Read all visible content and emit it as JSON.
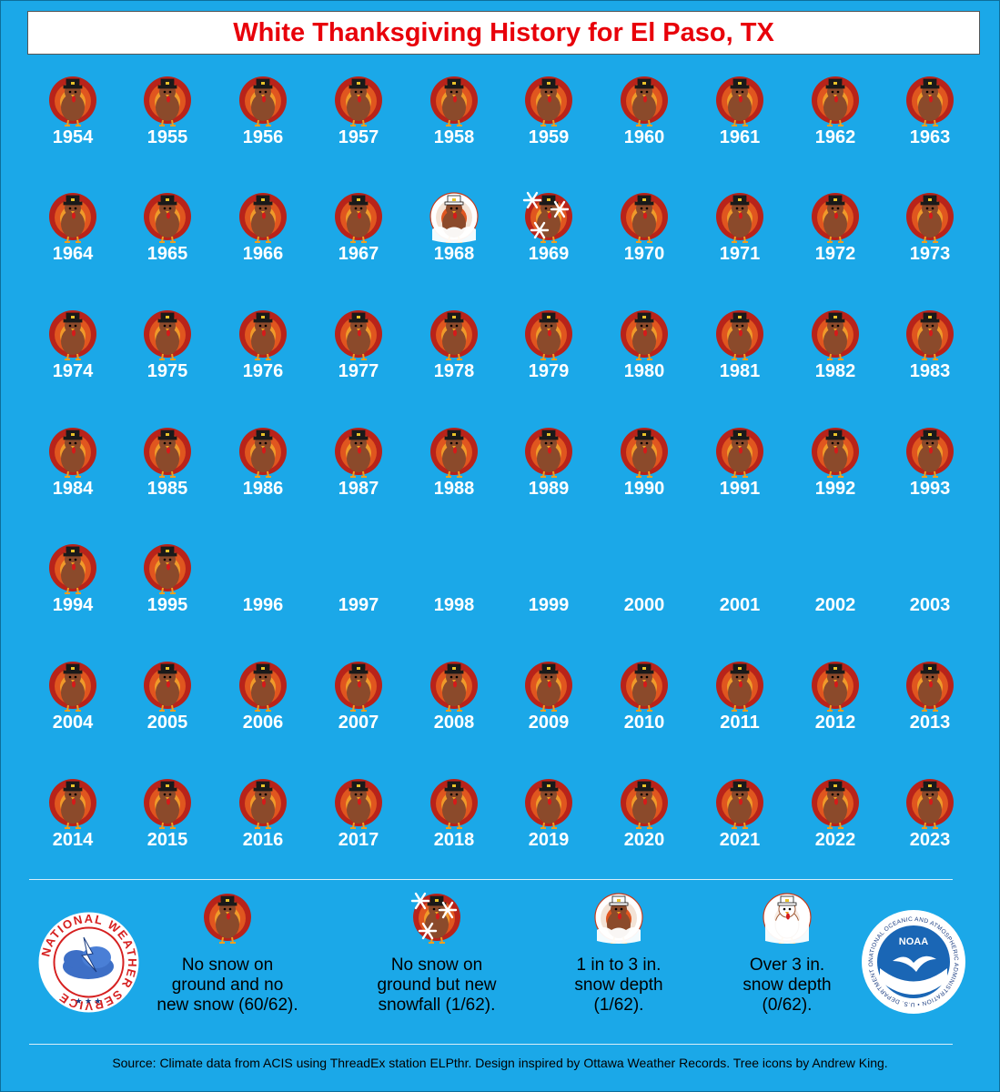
{
  "title": "White Thanksgiving History for El Paso, TX",
  "colors": {
    "background": "#1ba8e8",
    "title_text": "#e8000a",
    "turkey_body": "#8b4a2b",
    "turkey_feather_outer": "#b8231a",
    "turkey_feather_mid": "#e0561f",
    "turkey_feather_inner": "#f09a2a",
    "snow": "#ffffff"
  },
  "years": [
    {
      "year": "1954",
      "icon": "turkey-no-snow-icon"
    },
    {
      "year": "1955",
      "icon": "turkey-no-snow-icon"
    },
    {
      "year": "1956",
      "icon": "turkey-no-snow-icon"
    },
    {
      "year": "1957",
      "icon": "turkey-no-snow-icon"
    },
    {
      "year": "1958",
      "icon": "turkey-no-snow-icon"
    },
    {
      "year": "1959",
      "icon": "turkey-no-snow-icon"
    },
    {
      "year": "1960",
      "icon": "turkey-no-snow-icon"
    },
    {
      "year": "1961",
      "icon": "turkey-no-snow-icon"
    },
    {
      "year": "1962",
      "icon": "turkey-no-snow-icon"
    },
    {
      "year": "1963",
      "icon": "turkey-no-snow-icon"
    },
    {
      "year": "1964",
      "icon": "turkey-no-snow-icon"
    },
    {
      "year": "1965",
      "icon": "turkey-no-snow-icon"
    },
    {
      "year": "1966",
      "icon": "turkey-no-snow-icon"
    },
    {
      "year": "1967",
      "icon": "turkey-no-snow-icon"
    },
    {
      "year": "1968",
      "icon": "turkey-snow-depth-icon"
    },
    {
      "year": "1969",
      "icon": "turkey-snowfall-icon"
    },
    {
      "year": "1970",
      "icon": "turkey-no-snow-icon"
    },
    {
      "year": "1971",
      "icon": "turkey-no-snow-icon"
    },
    {
      "year": "1972",
      "icon": "turkey-no-snow-icon"
    },
    {
      "year": "1973",
      "icon": "turkey-no-snow-icon"
    },
    {
      "year": "1974",
      "icon": "turkey-no-snow-icon"
    },
    {
      "year": "1975",
      "icon": "turkey-no-snow-icon"
    },
    {
      "year": "1976",
      "icon": "turkey-no-snow-icon"
    },
    {
      "year": "1977",
      "icon": "turkey-no-snow-icon"
    },
    {
      "year": "1978",
      "icon": "turkey-no-snow-icon"
    },
    {
      "year": "1979",
      "icon": "turkey-no-snow-icon"
    },
    {
      "year": "1980",
      "icon": "turkey-no-snow-icon"
    },
    {
      "year": "1981",
      "icon": "turkey-no-snow-icon"
    },
    {
      "year": "1982",
      "icon": "turkey-no-snow-icon"
    },
    {
      "year": "1983",
      "icon": "turkey-no-snow-icon"
    },
    {
      "year": "1984",
      "icon": "turkey-no-snow-icon"
    },
    {
      "year": "1985",
      "icon": "turkey-no-snow-icon"
    },
    {
      "year": "1986",
      "icon": "turkey-no-snow-icon"
    },
    {
      "year": "1987",
      "icon": "turkey-no-snow-icon"
    },
    {
      "year": "1988",
      "icon": "turkey-no-snow-icon"
    },
    {
      "year": "1989",
      "icon": "turkey-no-snow-icon"
    },
    {
      "year": "1990",
      "icon": "turkey-no-snow-icon"
    },
    {
      "year": "1991",
      "icon": "turkey-no-snow-icon"
    },
    {
      "year": "1992",
      "icon": "turkey-no-snow-icon"
    },
    {
      "year": "1993",
      "icon": "turkey-no-snow-icon"
    },
    {
      "year": "1994",
      "icon": "turkey-no-snow-icon"
    },
    {
      "year": "1995",
      "icon": "turkey-no-snow-icon"
    },
    {
      "year": "1996",
      "icon": "none"
    },
    {
      "year": "1997",
      "icon": "none"
    },
    {
      "year": "1998",
      "icon": "none"
    },
    {
      "year": "1999",
      "icon": "none"
    },
    {
      "year": "2000",
      "icon": "none"
    },
    {
      "year": "2001",
      "icon": "none"
    },
    {
      "year": "2002",
      "icon": "none"
    },
    {
      "year": "2003",
      "icon": "none"
    },
    {
      "year": "2004",
      "icon": "turkey-no-snow-icon"
    },
    {
      "year": "2005",
      "icon": "turkey-no-snow-icon"
    },
    {
      "year": "2006",
      "icon": "turkey-no-snow-icon"
    },
    {
      "year": "2007",
      "icon": "turkey-no-snow-icon"
    },
    {
      "year": "2008",
      "icon": "turkey-no-snow-icon"
    },
    {
      "year": "2009",
      "icon": "turkey-no-snow-icon"
    },
    {
      "year": "2010",
      "icon": "turkey-no-snow-icon"
    },
    {
      "year": "2011",
      "icon": "turkey-no-snow-icon"
    },
    {
      "year": "2012",
      "icon": "turkey-no-snow-icon"
    },
    {
      "year": "2013",
      "icon": "turkey-no-snow-icon"
    },
    {
      "year": "2014",
      "icon": "turkey-no-snow-icon"
    },
    {
      "year": "2015",
      "icon": "turkey-no-snow-icon"
    },
    {
      "year": "2016",
      "icon": "turkey-no-snow-icon"
    },
    {
      "year": "2017",
      "icon": "turkey-no-snow-icon"
    },
    {
      "year": "2018",
      "icon": "turkey-no-snow-icon"
    },
    {
      "year": "2019",
      "icon": "turkey-no-snow-icon"
    },
    {
      "year": "2020",
      "icon": "turkey-no-snow-icon"
    },
    {
      "year": "2021",
      "icon": "turkey-no-snow-icon"
    },
    {
      "year": "2022",
      "icon": "turkey-no-snow-icon"
    },
    {
      "year": "2023",
      "icon": "turkey-no-snow-icon"
    }
  ],
  "legend": [
    {
      "icon": "turkey-no-snow-icon",
      "lines": [
        "No snow on",
        "ground and no",
        "new snow (60/62)."
      ]
    },
    {
      "icon": "turkey-snowfall-icon",
      "lines": [
        "No snow on",
        "ground but new",
        "snowfall (1/62)."
      ]
    },
    {
      "icon": "turkey-snow-depth-icon",
      "lines": [
        "1 in to 3 in.",
        "snow depth",
        "(1/62)."
      ]
    },
    {
      "icon": "turkey-deep-snow-icon",
      "lines": [
        "Over 3 in.",
        "snow depth",
        "(0/62)."
      ]
    }
  ],
  "logos": {
    "left": {
      "name": "nws-logo-icon",
      "text": "NATIONAL WEATHER SERVICE"
    },
    "right": {
      "name": "noaa-logo-icon",
      "text": "NATIONAL OCEANIC AND ATMOSPHERIC ADMINISTRATION",
      "center": "NOAA",
      "bottom": "U.S. DEPARTMENT OF COMMERCE"
    }
  },
  "source": "Source: Climate data from ACIS using ThreadEx station ELPthr. Design inspired by Ottawa Weather Records. Tree icons by Andrew King."
}
